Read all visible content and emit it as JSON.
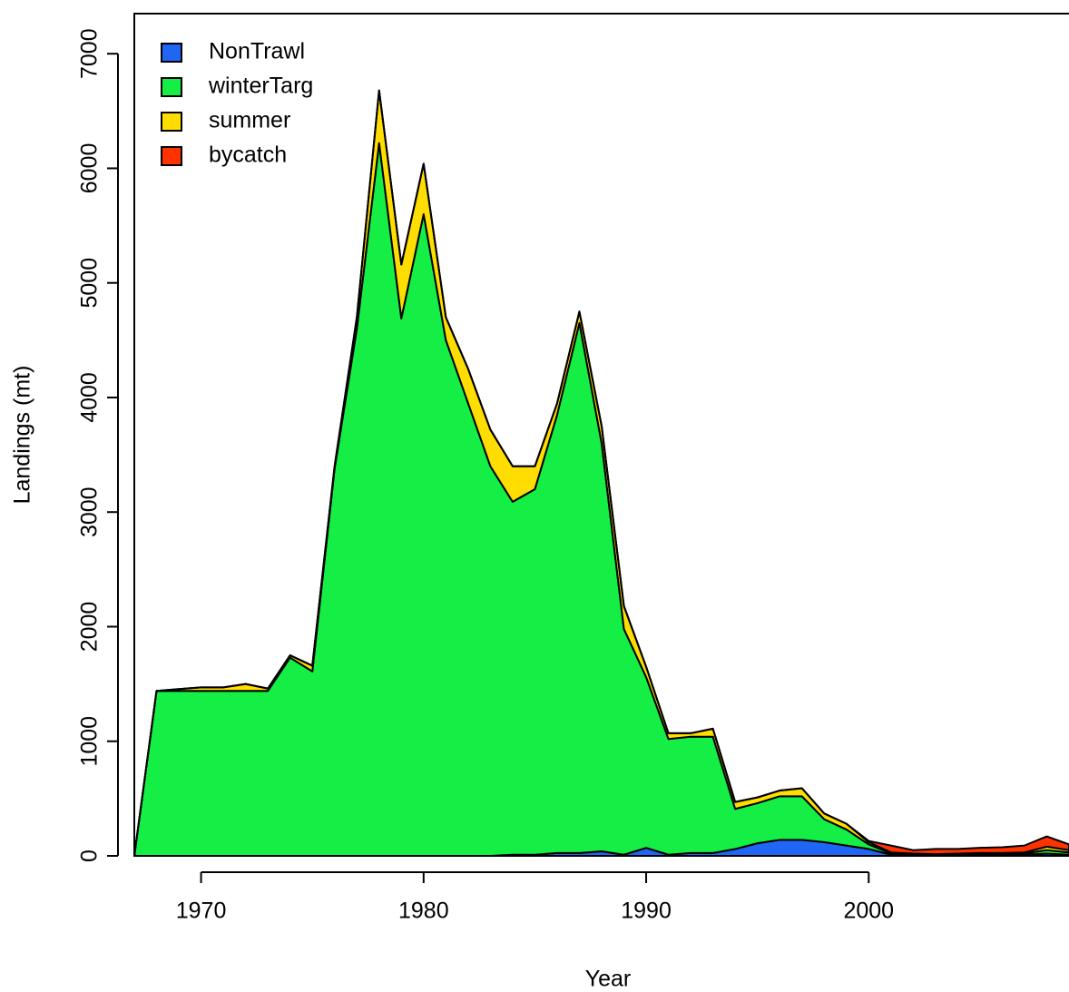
{
  "chart_data": {
    "type": "stacked-area",
    "x_label": "Year",
    "y_label": "Landings (mt)",
    "x": [
      1967,
      1968,
      1969,
      1970,
      1971,
      1972,
      1973,
      1974,
      1975,
      1976,
      1977,
      1978,
      1979,
      1980,
      1981,
      1982,
      1983,
      1984,
      1985,
      1986,
      1987,
      1988,
      1989,
      1990,
      1991,
      1992,
      1993,
      1994,
      1995,
      1996,
      1997,
      1998,
      1999,
      2000,
      2001,
      2002,
      2003,
      2004,
      2005,
      2006,
      2007,
      2008,
      2009
    ],
    "series": [
      {
        "name": "NonTrawl",
        "color": "#1f66f4",
        "values": [
          0,
          0,
          0,
          0,
          0,
          0,
          0,
          0,
          0,
          0,
          0,
          0,
          0,
          0,
          0,
          0,
          0,
          10,
          10,
          25,
          25,
          40,
          10,
          70,
          10,
          25,
          25,
          60,
          110,
          140,
          140,
          120,
          90,
          60,
          10,
          5,
          5,
          5,
          5,
          5,
          10,
          20,
          10
        ]
      },
      {
        "name": "winterTarg",
        "color": "#15ef45",
        "values": [
          0,
          1440,
          1440,
          1440,
          1440,
          1440,
          1440,
          1730,
          1610,
          3380,
          4600,
          6220,
          4690,
          5600,
          4500,
          3950,
          3400,
          3080,
          3190,
          3825,
          4625,
          3560,
          1970,
          1490,
          1010,
          1015,
          1015,
          350,
          350,
          380,
          380,
          200,
          140,
          40,
          10,
          5,
          5,
          10,
          10,
          10,
          10,
          30,
          20
        ]
      },
      {
        "name": "summer",
        "color": "#ffdd00",
        "values": [
          0,
          0,
          15,
          30,
          30,
          60,
          20,
          20,
          50,
          20,
          100,
          460,
          470,
          440,
          200,
          300,
          320,
          310,
          200,
          100,
          100,
          150,
          200,
          90,
          50,
          30,
          70,
          60,
          50,
          50,
          70,
          50,
          50,
          20,
          10,
          10,
          5,
          5,
          10,
          10,
          10,
          30,
          20
        ]
      },
      {
        "name": "bycatch",
        "color": "#ff3300",
        "values": [
          0,
          0,
          0,
          0,
          0,
          0,
          0,
          0,
          0,
          0,
          0,
          0,
          0,
          0,
          0,
          0,
          0,
          0,
          0,
          0,
          0,
          0,
          0,
          0,
          0,
          0,
          0,
          0,
          0,
          0,
          0,
          0,
          0,
          10,
          60,
          30,
          45,
          40,
          45,
          50,
          60,
          90,
          50
        ]
      }
    ],
    "xlim": [
      1967,
      2009
    ],
    "xticks": [
      1970,
      1980,
      1990,
      2000
    ],
    "ylim": [
      0,
      7350
    ],
    "yticks": [
      0,
      1000,
      2000,
      3000,
      4000,
      5000,
      6000,
      7000
    ],
    "legend": "top-left"
  }
}
